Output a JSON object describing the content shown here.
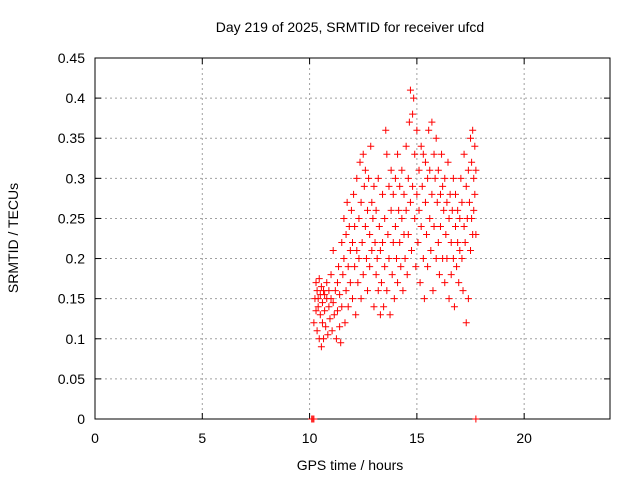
{
  "chart_data": {
    "type": "scatter",
    "title": "Day 219 of 2025, SRMTID for receiver ufcd",
    "xlabel": "GPS time / hours",
    "ylabel": "SRMTID / TECUs",
    "xlim": [
      0,
      24
    ],
    "ylim": [
      0,
      0.45
    ],
    "xticks": [
      "0",
      "5",
      "10",
      "15",
      "20"
    ],
    "yticks": [
      "0",
      "0.05",
      "0.1",
      "0.15",
      "0.2",
      "0.25",
      "0.3",
      "0.35",
      "0.4",
      "0.45"
    ],
    "grid": true,
    "marker": "+",
    "color": "#ff0000",
    "series": [
      {
        "points": [
          [
            10.1,
            0.0
          ],
          [
            10.15,
            0.0
          ],
          [
            10.2,
            0.0
          ],
          [
            17.75,
            0.0
          ],
          [
            10.2,
            0.12
          ],
          [
            10.25,
            0.15
          ],
          [
            10.3,
            0.135
          ],
          [
            10.3,
            0.17
          ],
          [
            10.35,
            0.11
          ],
          [
            10.35,
            0.16
          ],
          [
            10.4,
            0.14
          ],
          [
            10.4,
            0.15
          ],
          [
            10.45,
            0.1
          ],
          [
            10.45,
            0.175
          ],
          [
            10.5,
            0.13
          ],
          [
            10.5,
            0.155
          ],
          [
            10.55,
            0.09
          ],
          [
            10.55,
            0.165
          ],
          [
            10.6,
            0.12
          ],
          [
            10.6,
            0.145
          ],
          [
            10.65,
            0.1
          ],
          [
            10.65,
            0.16
          ],
          [
            10.7,
            0.135
          ],
          [
            10.7,
            0.155
          ],
          [
            10.75,
            0.115
          ],
          [
            10.8,
            0.15
          ],
          [
            10.8,
            0.17
          ],
          [
            10.85,
            0.105
          ],
          [
            10.9,
            0.14
          ],
          [
            10.9,
            0.16
          ],
          [
            10.95,
            0.125
          ],
          [
            11.0,
            0.15
          ],
          [
            11.0,
            0.18
          ],
          [
            11.05,
            0.11
          ],
          [
            11.1,
            0.145
          ],
          [
            11.1,
            0.21
          ],
          [
            11.15,
            0.13
          ],
          [
            11.2,
            0.16
          ],
          [
            11.25,
            0.1
          ],
          [
            11.3,
            0.17
          ],
          [
            11.3,
            0.135
          ],
          [
            11.35,
            0.19
          ],
          [
            11.4,
            0.115
          ],
          [
            11.4,
            0.155
          ],
          [
            11.45,
            0.095
          ],
          [
            11.5,
            0.22
          ],
          [
            11.5,
            0.14
          ],
          [
            11.55,
            0.18
          ],
          [
            11.6,
            0.25
          ],
          [
            11.6,
            0.2
          ],
          [
            11.65,
            0.12
          ],
          [
            11.7,
            0.23
          ],
          [
            11.7,
            0.16
          ],
          [
            11.75,
            0.27
          ],
          [
            11.8,
            0.19
          ],
          [
            11.8,
            0.14
          ],
          [
            11.85,
            0.24
          ],
          [
            11.9,
            0.21
          ],
          [
            11.9,
            0.17
          ],
          [
            11.95,
            0.26
          ],
          [
            12.0,
            0.22
          ],
          [
            12.0,
            0.15
          ],
          [
            12.05,
            0.28
          ],
          [
            12.1,
            0.19
          ],
          [
            12.1,
            0.24
          ],
          [
            12.15,
            0.13
          ],
          [
            12.2,
            0.21
          ],
          [
            12.2,
            0.3
          ],
          [
            12.25,
            0.17
          ],
          [
            12.3,
            0.25
          ],
          [
            12.3,
            0.2
          ],
          [
            12.35,
            0.32
          ],
          [
            12.4,
            0.15
          ],
          [
            12.4,
            0.27
          ],
          [
            12.45,
            0.22
          ],
          [
            12.5,
            0.33
          ],
          [
            12.5,
            0.18
          ],
          [
            12.55,
            0.29
          ],
          [
            12.6,
            0.24
          ],
          [
            12.6,
            0.31
          ],
          [
            12.65,
            0.2
          ],
          [
            12.7,
            0.26
          ],
          [
            12.7,
            0.16
          ],
          [
            12.75,
            0.3
          ],
          [
            12.8,
            0.23
          ],
          [
            12.8,
            0.19
          ],
          [
            12.85,
            0.34
          ],
          [
            12.9,
            0.27
          ],
          [
            12.9,
            0.21
          ],
          [
            12.95,
            0.25
          ],
          [
            13.0,
            0.29
          ],
          [
            13.0,
            0.14
          ],
          [
            13.05,
            0.22
          ],
          [
            13.1,
            0.18
          ],
          [
            13.1,
            0.26
          ],
          [
            13.15,
            0.2
          ],
          [
            13.2,
            0.3
          ],
          [
            13.2,
            0.16
          ],
          [
            13.25,
            0.24
          ],
          [
            13.3,
            0.13
          ],
          [
            13.3,
            0.21
          ],
          [
            13.35,
            0.17
          ],
          [
            13.4,
            0.28
          ],
          [
            13.4,
            0.22
          ],
          [
            13.45,
            0.14
          ],
          [
            13.5,
            0.19
          ],
          [
            13.5,
            0.25
          ],
          [
            13.55,
            0.36
          ],
          [
            13.6,
            0.33
          ],
          [
            13.6,
            0.16
          ],
          [
            13.65,
            0.23
          ],
          [
            13.7,
            0.29
          ],
          [
            13.7,
            0.2
          ],
          [
            13.75,
            0.13
          ],
          [
            13.8,
            0.26
          ],
          [
            13.8,
            0.31
          ],
          [
            13.85,
            0.18
          ],
          [
            13.9,
            0.22
          ],
          [
            13.9,
            0.28
          ],
          [
            13.95,
            0.15
          ],
          [
            14.0,
            0.24
          ],
          [
            14.0,
            0.3
          ],
          [
            14.05,
            0.2
          ],
          [
            14.1,
            0.33
          ],
          [
            14.1,
            0.17
          ],
          [
            14.15,
            0.26
          ],
          [
            14.2,
            0.22
          ],
          [
            14.2,
            0.29
          ],
          [
            14.25,
            0.19
          ],
          [
            14.3,
            0.25
          ],
          [
            14.3,
            0.31
          ],
          [
            14.35,
            0.16
          ],
          [
            14.4,
            0.23
          ],
          [
            14.4,
            0.28
          ],
          [
            14.45,
            0.2
          ],
          [
            14.5,
            0.34
          ],
          [
            14.5,
            0.26
          ],
          [
            14.55,
            0.18
          ],
          [
            14.6,
            0.3
          ],
          [
            14.6,
            0.23
          ],
          [
            14.65,
            0.37
          ],
          [
            14.7,
            0.27
          ],
          [
            14.7,
            0.41
          ],
          [
            14.75,
            0.21
          ],
          [
            14.8,
            0.38
          ],
          [
            14.8,
            0.29
          ],
          [
            14.85,
            0.4
          ],
          [
            14.9,
            0.25
          ],
          [
            14.9,
            0.33
          ],
          [
            14.95,
            0.19
          ],
          [
            15.0,
            0.36
          ],
          [
            15.0,
            0.28
          ],
          [
            15.05,
            0.22
          ],
          [
            15.1,
            0.31
          ],
          [
            15.1,
            0.26
          ],
          [
            15.15,
            0.17
          ],
          [
            15.2,
            0.34
          ],
          [
            15.2,
            0.24
          ],
          [
            15.25,
            0.29
          ],
          [
            15.3,
            0.2
          ],
          [
            15.3,
            0.33
          ],
          [
            15.35,
            0.15
          ],
          [
            15.4,
            0.27
          ],
          [
            15.4,
            0.32
          ],
          [
            15.45,
            0.23
          ],
          [
            15.5,
            0.3
          ],
          [
            15.5,
            0.19
          ],
          [
            15.55,
            0.36
          ],
          [
            15.6,
            0.25
          ],
          [
            15.6,
            0.31
          ],
          [
            15.65,
            0.21
          ],
          [
            15.7,
            0.37
          ],
          [
            15.7,
            0.28
          ],
          [
            15.75,
            0.16
          ],
          [
            15.8,
            0.33
          ],
          [
            15.8,
            0.24
          ],
          [
            15.85,
            0.3
          ],
          [
            15.9,
            0.2
          ],
          [
            15.9,
            0.35
          ],
          [
            15.95,
            0.27
          ],
          [
            16.0,
            0.22
          ],
          [
            16.0,
            0.31
          ],
          [
            16.05,
            0.18
          ],
          [
            16.1,
            0.28
          ],
          [
            16.1,
            0.24
          ],
          [
            16.15,
            0.33
          ],
          [
            16.2,
            0.2
          ],
          [
            16.2,
            0.29
          ],
          [
            16.25,
            0.26
          ],
          [
            16.3,
            0.17
          ],
          [
            16.3,
            0.3
          ],
          [
            16.35,
            0.23
          ],
          [
            16.4,
            0.27
          ],
          [
            16.4,
            0.2
          ],
          [
            16.45,
            0.32
          ],
          [
            16.5,
            0.25
          ],
          [
            16.5,
            0.15
          ],
          [
            16.55,
            0.28
          ],
          [
            16.6,
            0.22
          ],
          [
            16.6,
            0.18
          ],
          [
            16.65,
            0.26
          ],
          [
            16.7,
            0.2
          ],
          [
            16.7,
            0.3
          ],
          [
            16.75,
            0.14
          ],
          [
            16.8,
            0.24
          ],
          [
            16.8,
            0.28
          ],
          [
            16.85,
            0.19
          ],
          [
            16.9,
            0.22
          ],
          [
            16.9,
            0.26
          ],
          [
            16.95,
            0.17
          ],
          [
            17.0,
            0.25
          ],
          [
            17.0,
            0.21
          ],
          [
            17.05,
            0.3
          ],
          [
            17.1,
            0.2
          ],
          [
            17.1,
            0.27
          ],
          [
            17.15,
            0.16
          ],
          [
            17.2,
            0.24
          ],
          [
            17.2,
            0.33
          ],
          [
            17.25,
            0.22
          ],
          [
            17.3,
            0.29
          ],
          [
            17.3,
            0.12
          ],
          [
            17.35,
            0.25
          ],
          [
            17.4,
            0.31
          ],
          [
            17.4,
            0.15
          ],
          [
            17.45,
            0.27
          ],
          [
            17.5,
            0.35
          ],
          [
            17.5,
            0.21
          ],
          [
            17.55,
            0.32
          ],
          [
            17.55,
            0.25
          ],
          [
            17.6,
            0.36
          ],
          [
            17.6,
            0.23
          ],
          [
            17.65,
            0.3
          ],
          [
            17.65,
            0.26
          ],
          [
            17.7,
            0.34
          ],
          [
            17.7,
            0.28
          ],
          [
            17.75,
            0.23
          ],
          [
            17.75,
            0.31
          ]
        ]
      }
    ]
  }
}
